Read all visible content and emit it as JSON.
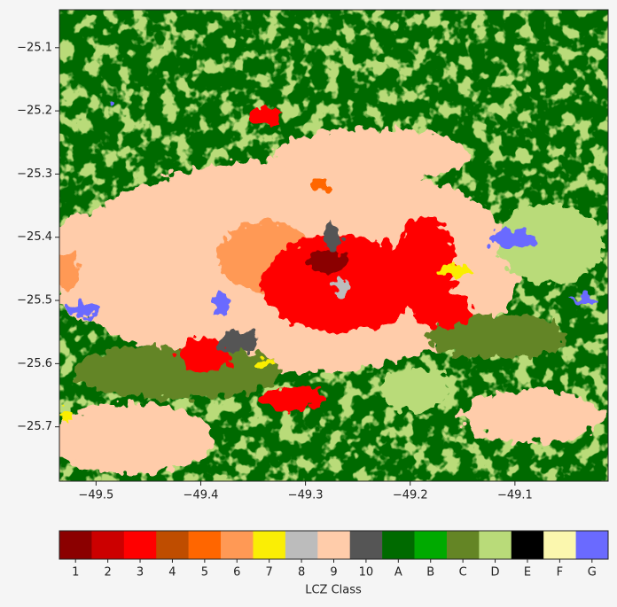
{
  "chart_data": {
    "type": "raster",
    "xlim": [
      -49.535,
      -49.011
    ],
    "ylim": [
      -25.786,
      -25.04
    ],
    "xticks": [
      {
        "value": -49.5,
        "label": "−49.5"
      },
      {
        "value": -49.4,
        "label": "−49.4"
      },
      {
        "value": -49.3,
        "label": "−49.3"
      },
      {
        "value": -49.2,
        "label": "−49.2"
      },
      {
        "value": -49.1,
        "label": "−49.1"
      }
    ],
    "yticks": [
      {
        "value": -25.1,
        "label": "−25.1"
      },
      {
        "value": -25.2,
        "label": "−25.2"
      },
      {
        "value": -25.3,
        "label": "−25.3"
      },
      {
        "value": -25.4,
        "label": "−25.4"
      },
      {
        "value": -25.5,
        "label": "−25.5"
      },
      {
        "value": -25.6,
        "label": "−25.6"
      },
      {
        "value": -25.7,
        "label": "−25.7"
      }
    ],
    "colorbar": {
      "label": "LCZ Class",
      "classes": [
        {
          "label": "1",
          "color": "#8b0000"
        },
        {
          "label": "2",
          "color": "#cc0000"
        },
        {
          "label": "3",
          "color": "#ff0000"
        },
        {
          "label": "4",
          "color": "#bf4d00"
        },
        {
          "label": "5",
          "color": "#ff6600"
        },
        {
          "label": "6",
          "color": "#ff9955"
        },
        {
          "label": "7",
          "color": "#faee05"
        },
        {
          "label": "8",
          "color": "#bcbcbc"
        },
        {
          "label": "9",
          "color": "#ffccaa"
        },
        {
          "label": "10",
          "color": "#555555"
        },
        {
          "label": "A",
          "color": "#006a00"
        },
        {
          "label": "B",
          "color": "#00aa00"
        },
        {
          "label": "C",
          "color": "#648525"
        },
        {
          "label": "D",
          "color": "#b9db79"
        },
        {
          "label": "E",
          "color": "#000000"
        },
        {
          "label": "F",
          "color": "#fbf7ae"
        },
        {
          "label": "G",
          "color": "#6a6aff"
        }
      ]
    }
  }
}
